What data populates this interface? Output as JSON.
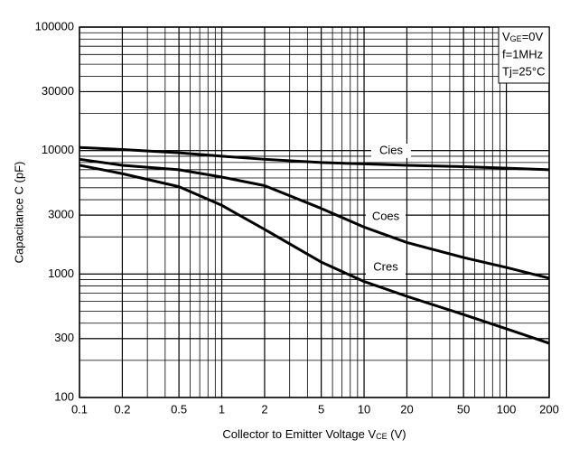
{
  "chart_data": {
    "type": "line",
    "x_label": {
      "main": "Collector to Emitter Voltage V",
      "sub": "CE",
      "rest": "  (V)"
    },
    "y_label": "Capacitance C  (pF)",
    "log_x": true,
    "log_y": true,
    "grid": "major-minor",
    "xlim": [
      0.1,
      200
    ],
    "xticks": [
      0.1,
      0.2,
      0.5,
      1,
      2,
      5,
      10,
      20,
      50,
      100,
      200
    ],
    "ylim": [
      100,
      100000
    ],
    "yticks": [
      100,
      300,
      1000,
      3000,
      10000,
      30000,
      100000
    ],
    "x": [
      0.1,
      0.2,
      0.5,
      1,
      2,
      5,
      10,
      20,
      50,
      100,
      200
    ],
    "series": [
      {
        "name": "Cies",
        "color": "#000000",
        "values": [
          10600,
          10200,
          9600,
          9000,
          8500,
          8000,
          7800,
          7600,
          7400,
          7200,
          7000
        ]
      },
      {
        "name": "Coes",
        "color": "#000000",
        "values": [
          8500,
          7600,
          7000,
          6100,
          5200,
          3400,
          2400,
          1800,
          1360,
          1130,
          925
        ]
      },
      {
        "name": "Cres",
        "color": "#000000",
        "values": [
          7600,
          6500,
          5100,
          3600,
          2300,
          1250,
          870,
          660,
          470,
          360,
          275
        ]
      }
    ],
    "conditions": [
      {
        "main": "V",
        "sub": "GE",
        "rest": "=0V"
      },
      "f=1MHz",
      "Tj=25°C"
    ]
  }
}
